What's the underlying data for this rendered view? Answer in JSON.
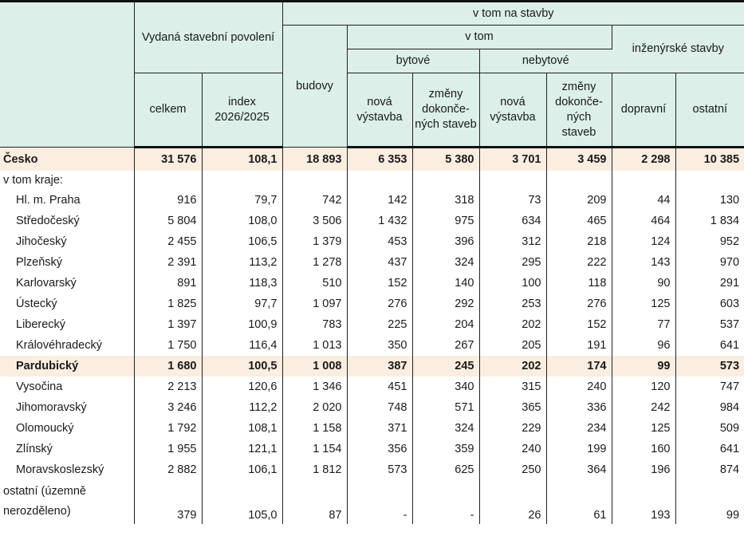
{
  "header": {
    "issued": "Vydaná stavební povolení",
    "of_which_constructions": "v tom na stavby",
    "of_which": "v tom",
    "residential": "bytové",
    "nonresidential": "nebytové",
    "civil": "inženýrské stavby",
    "total": "celkem",
    "index": "index 2026/2025",
    "buildings": "budovy",
    "new_res": "nová výstavba",
    "changes_res": "změny dokonče-ných staveb",
    "new_nonres": "nová výstavba",
    "changes_nonres": "změny dokonče-ných staveb",
    "transport": "dopravní",
    "other": "ostatní"
  },
  "subheading": "v tom kraje:",
  "rows": [
    {
      "name": "Česko",
      "total": "31 576",
      "index": "108,1",
      "buildings": "18 893",
      "new_res": "6 353",
      "chg_res": "5 380",
      "new_nonres": "3 701",
      "chg_nonres": "3 459",
      "transport": "2 298",
      "other": "10 385"
    },
    {
      "name": "Hl. m. Praha",
      "total": "916",
      "index": "79,7",
      "buildings": "742",
      "new_res": "142",
      "chg_res": "318",
      "new_nonres": "73",
      "chg_nonres": "209",
      "transport": "44",
      "other": "130"
    },
    {
      "name": "Středočeský",
      "total": "5 804",
      "index": "108,0",
      "buildings": "3 506",
      "new_res": "1 432",
      "chg_res": "975",
      "new_nonres": "634",
      "chg_nonres": "465",
      "transport": "464",
      "other": "1 834"
    },
    {
      "name": "Jihočeský",
      "total": "2 455",
      "index": "106,5",
      "buildings": "1 379",
      "new_res": "453",
      "chg_res": "396",
      "new_nonres": "312",
      "chg_nonres": "218",
      "transport": "124",
      "other": "952"
    },
    {
      "name": "Plzeňský",
      "total": "2 391",
      "index": "113,2",
      "buildings": "1 278",
      "new_res": "437",
      "chg_res": "324",
      "new_nonres": "295",
      "chg_nonres": "222",
      "transport": "143",
      "other": "970"
    },
    {
      "name": "Karlovarský",
      "total": "891",
      "index": "118,3",
      "buildings": "510",
      "new_res": "152",
      "chg_res": "140",
      "new_nonres": "100",
      "chg_nonres": "118",
      "transport": "90",
      "other": "291"
    },
    {
      "name": "Ústecký",
      "total": "1 825",
      "index": "97,7",
      "buildings": "1 097",
      "new_res": "276",
      "chg_res": "292",
      "new_nonres": "253",
      "chg_nonres": "276",
      "transport": "125",
      "other": "603"
    },
    {
      "name": "Liberecký",
      "total": "1 397",
      "index": "100,9",
      "buildings": "783",
      "new_res": "225",
      "chg_res": "204",
      "new_nonres": "202",
      "chg_nonres": "152",
      "transport": "77",
      "other": "537"
    },
    {
      "name": "Královéhradecký",
      "total": "1 750",
      "index": "116,4",
      "buildings": "1 013",
      "new_res": "350",
      "chg_res": "267",
      "new_nonres": "205",
      "chg_nonres": "191",
      "transport": "96",
      "other": "641"
    },
    {
      "name": "Pardubický",
      "total": "1 680",
      "index": "100,5",
      "buildings": "1 008",
      "new_res": "387",
      "chg_res": "245",
      "new_nonres": "202",
      "chg_nonres": "174",
      "transport": "99",
      "other": "573"
    },
    {
      "name": "Vysočina",
      "total": "2 213",
      "index": "120,6",
      "buildings": "1 346",
      "new_res": "451",
      "chg_res": "340",
      "new_nonres": "315",
      "chg_nonres": "240",
      "transport": "120",
      "other": "747"
    },
    {
      "name": "Jihomoravský",
      "total": "3 246",
      "index": "112,2",
      "buildings": "2 020",
      "new_res": "748",
      "chg_res": "571",
      "new_nonres": "365",
      "chg_nonres": "336",
      "transport": "242",
      "other": "984"
    },
    {
      "name": "Olomoucký",
      "total": "1 792",
      "index": "108,1",
      "buildings": "1 158",
      "new_res": "371",
      "chg_res": "324",
      "new_nonres": "229",
      "chg_nonres": "234",
      "transport": "125",
      "other": "509"
    },
    {
      "name": "Zlínský",
      "total": "1 955",
      "index": "121,1",
      "buildings": "1 154",
      "new_res": "356",
      "chg_res": "359",
      "new_nonres": "240",
      "chg_nonres": "199",
      "transport": "160",
      "other": "641"
    },
    {
      "name": "Moravskoslezský",
      "total": "2 882",
      "index": "106,1",
      "buildings": "1 812",
      "new_res": "573",
      "chg_res": "625",
      "new_nonres": "250",
      "chg_nonres": "364",
      "transport": "196",
      "other": "874"
    },
    {
      "name": "ostatní (územně nerozděleno)",
      "total": "379",
      "index": "105,0",
      "buildings": "87",
      "new_res": "-",
      "chg_res": "-",
      "new_nonres": "26",
      "chg_nonres": "61",
      "transport": "193",
      "other": "99"
    }
  ],
  "colors": {
    "header_bg": "#dcefe9",
    "highlight_bg": "#fbeee0"
  }
}
